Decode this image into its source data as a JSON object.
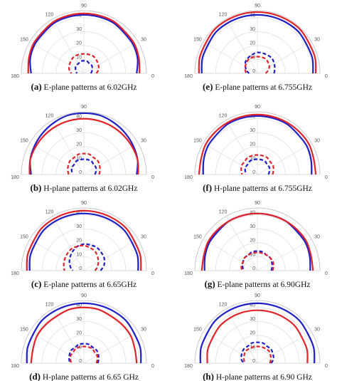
{
  "chart_data": [
    {
      "type": "polar",
      "label": "(a)",
      "caption": "E-plane patterns at 6.02GHz",
      "theta": [
        0,
        15,
        30,
        45,
        60,
        75,
        90,
        105,
        120,
        135,
        150,
        165,
        180
      ],
      "thetaticks": [
        0,
        30,
        90,
        120,
        150,
        180
      ],
      "rlim": [
        0,
        45
      ],
      "rticks": [
        10,
        20,
        30,
        40
      ],
      "series": [
        {
          "color": "#1f1fc8",
          "dash": false,
          "values": [
            38,
            40,
            41,
            41,
            42,
            42,
            42,
            42,
            42,
            41,
            41,
            40,
            38
          ]
        },
        {
          "color": "#e0242a",
          "dash": false,
          "values": [
            40,
            41,
            42,
            42,
            43,
            43,
            43,
            43,
            43,
            42,
            42,
            41,
            40
          ]
        },
        {
          "color": "#1f1fc8",
          "dash": true,
          "values": [
            5,
            6,
            7,
            8,
            8,
            9,
            9,
            9,
            8,
            8,
            7,
            6,
            5
          ]
        },
        {
          "color": "#e0242a",
          "dash": true,
          "values": [
            9,
            11,
            12,
            13,
            14,
            14,
            14,
            14,
            14,
            13,
            12,
            11,
            9
          ]
        }
      ]
    },
    {
      "type": "polar",
      "label": "(b)",
      "caption": "H-plane patterns at 6.02GHz",
      "theta": [
        0,
        15,
        30,
        45,
        60,
        75,
        90,
        105,
        120,
        135,
        150,
        165,
        180
      ],
      "thetaticks": [
        0,
        30,
        90,
        120,
        150,
        180
      ],
      "rlim": [
        0,
        45
      ],
      "rticks": [
        0,
        10,
        20,
        30,
        40
      ],
      "series": [
        {
          "color": "#1f1fc8",
          "dash": false,
          "values": [
            38,
            40,
            41,
            42,
            43,
            44,
            44,
            44,
            43,
            42,
            41,
            40,
            38
          ]
        },
        {
          "color": "#e0242a",
          "dash": false,
          "values": [
            39,
            40,
            40,
            40,
            40,
            40,
            40,
            40,
            40,
            40,
            40,
            40,
            39
          ]
        },
        {
          "color": "#1f1fc8",
          "dash": true,
          "values": [
            8,
            9,
            10,
            10,
            11,
            11,
            11,
            11,
            11,
            10,
            10,
            9,
            8
          ]
        },
        {
          "color": "#e0242a",
          "dash": true,
          "values": [
            11,
            12,
            13,
            14,
            14,
            15,
            15,
            15,
            14,
            14,
            13,
            12,
            11
          ]
        }
      ]
    },
    {
      "type": "polar",
      "label": "(c)",
      "caption": "E-plane patterns at 6.65GHz",
      "theta": [
        0,
        15,
        30,
        45,
        60,
        75,
        90,
        105,
        120,
        135,
        150,
        165,
        180
      ],
      "thetaticks": [
        0,
        30,
        90,
        120,
        150,
        180
      ],
      "rlim": [
        0,
        45
      ],
      "rticks": [
        0,
        10,
        20,
        30,
        40
      ],
      "series": [
        {
          "color": "#1f1fc8",
          "dash": false,
          "values": [
            39,
            40,
            40,
            41,
            41,
            41,
            41,
            41,
            41,
            41,
            40,
            40,
            39
          ]
        },
        {
          "color": "#e0242a",
          "dash": false,
          "values": [
            41,
            42,
            42,
            43,
            43,
            43,
            43,
            43,
            43,
            43,
            42,
            42,
            41
          ]
        },
        {
          "color": "#1f1fc8",
          "dash": true,
          "values": [
            12,
            15,
            17,
            18,
            19,
            19,
            19,
            18,
            16,
            14,
            12,
            10,
            8
          ]
        },
        {
          "color": "#e0242a",
          "dash": true,
          "values": [
            8,
            10,
            12,
            14,
            16,
            17,
            18,
            18,
            18,
            17,
            16,
            15,
            14
          ]
        }
      ]
    },
    {
      "type": "polar",
      "label": "(d)",
      "caption": "H-plane patterns at 6.65 GHz",
      "theta": [
        0,
        15,
        30,
        45,
        60,
        75,
        90,
        105,
        120,
        135,
        150,
        165,
        180
      ],
      "thetaticks": [
        0,
        30,
        90,
        120,
        150,
        180
      ],
      "rlim": [
        0,
        45
      ],
      "rticks": [
        0,
        10,
        20,
        30,
        40
      ],
      "series": [
        {
          "color": "#1f1fc8",
          "dash": false,
          "values": [
            41,
            42,
            42,
            43,
            43,
            43,
            43,
            43,
            43,
            43,
            42,
            42,
            41
          ]
        },
        {
          "color": "#e0242a",
          "dash": false,
          "values": [
            38,
            38,
            39,
            39,
            39,
            40,
            40,
            40,
            39,
            39,
            39,
            38,
            38
          ]
        },
        {
          "color": "#1f1fc8",
          "dash": true,
          "values": [
            10,
            11,
            12,
            13,
            13,
            14,
            14,
            14,
            13,
            13,
            12,
            11,
            10
          ]
        },
        {
          "color": "#e0242a",
          "dash": true,
          "values": [
            9,
            10,
            11,
            11,
            12,
            12,
            12,
            12,
            12,
            11,
            11,
            10,
            9
          ]
        }
      ]
    },
    {
      "type": "polar",
      "label": "(e)",
      "caption": "E-plane patterns at 6.755GHz",
      "theta": [
        0,
        15,
        30,
        45,
        60,
        75,
        90,
        105,
        120,
        135,
        150,
        165,
        180
      ],
      "thetaticks": [
        0,
        30,
        90,
        120,
        150,
        180
      ],
      "rlim": [
        0,
        45
      ],
      "rticks": [
        0,
        10,
        20,
        30,
        40
      ],
      "series": [
        {
          "color": "#1f1fc8",
          "dash": false,
          "values": [
            40,
            41,
            41,
            42,
            42,
            42,
            42,
            42,
            42,
            42,
            41,
            41,
            40
          ]
        },
        {
          "color": "#e0242a",
          "dash": false,
          "values": [
            42,
            43,
            43,
            44,
            44,
            44,
            44,
            44,
            44,
            44,
            43,
            43,
            42
          ]
        },
        {
          "color": "#1f1fc8",
          "dash": true,
          "values": [
            12,
            13,
            14,
            15,
            15,
            15,
            15,
            14,
            13,
            12,
            10,
            8,
            6
          ]
        },
        {
          "color": "#e0242a",
          "dash": true,
          "values": [
            6,
            8,
            10,
            11,
            12,
            12,
            12,
            12,
            12,
            11,
            10,
            9,
            8
          ]
        }
      ]
    },
    {
      "type": "polar",
      "label": "(f)",
      "caption": "H-plane patterns at 6.755GHz",
      "theta": [
        0,
        15,
        30,
        45,
        60,
        75,
        90,
        105,
        120,
        135,
        150,
        165,
        180
      ],
      "thetaticks": [
        0,
        30,
        90,
        120,
        150,
        180
      ],
      "rlim": [
        0,
        45
      ],
      "rticks": [
        0,
        10,
        20,
        30,
        40
      ],
      "series": [
        {
          "color": "#1f1fc8",
          "dash": false,
          "values": [
            39,
            40,
            41,
            41,
            42,
            42,
            42,
            42,
            42,
            41,
            41,
            40,
            39
          ]
        },
        {
          "color": "#e0242a",
          "dash": false,
          "values": [
            42,
            42,
            43,
            43,
            43,
            43,
            43,
            43,
            43,
            43,
            43,
            42,
            42
          ]
        },
        {
          "color": "#1f1fc8",
          "dash": true,
          "values": [
            8,
            9,
            10,
            10,
            11,
            11,
            11,
            11,
            11,
            10,
            10,
            9,
            8
          ]
        },
        {
          "color": "#e0242a",
          "dash": true,
          "values": [
            11,
            12,
            13,
            13,
            14,
            14,
            14,
            14,
            14,
            13,
            13,
            12,
            11
          ]
        }
      ]
    },
    {
      "type": "polar",
      "label": "(g)",
      "caption": "E-plane patterns at 6.90GHz",
      "theta": [
        0,
        15,
        30,
        45,
        60,
        75,
        90,
        105,
        120,
        135,
        150,
        165,
        180
      ],
      "thetaticks": [
        0,
        30,
        90,
        120,
        150,
        180
      ],
      "rlim": [
        0,
        45
      ],
      "rticks": [
        0,
        10,
        20,
        30,
        40
      ],
      "series": [
        {
          "color": "#1f1fc8",
          "dash": false,
          "values": [
            38,
            39,
            40,
            40,
            41,
            41,
            41,
            41,
            41,
            40,
            40,
            39,
            38
          ]
        },
        {
          "color": "#e0242a",
          "dash": false,
          "values": [
            40,
            40,
            41,
            41,
            41,
            41,
            41,
            41,
            41,
            41,
            41,
            40,
            40
          ]
        },
        {
          "color": "#1f1fc8",
          "dash": true,
          "values": [
            10,
            11,
            12,
            13,
            13,
            14,
            14,
            14,
            13,
            13,
            12,
            11,
            10
          ]
        },
        {
          "color": "#e0242a",
          "dash": true,
          "values": [
            11,
            12,
            13,
            13,
            13,
            13,
            13,
            13,
            13,
            13,
            12,
            12,
            11
          ]
        }
      ]
    },
    {
      "type": "polar",
      "label": "(h)",
      "caption": "H-plane patterns at 6.90 GHz",
      "theta": [
        0,
        15,
        30,
        45,
        60,
        75,
        90,
        105,
        120,
        135,
        150,
        165,
        180
      ],
      "thetaticks": [
        0,
        30,
        90,
        120,
        150,
        180
      ],
      "rlim": [
        0,
        45
      ],
      "rticks": [
        0,
        10,
        20,
        30,
        40
      ],
      "series": [
        {
          "color": "#1f1fc8",
          "dash": false,
          "values": [
            41,
            42,
            42,
            43,
            43,
            43,
            43,
            43,
            43,
            43,
            42,
            42,
            41
          ]
        },
        {
          "color": "#e0242a",
          "dash": false,
          "values": [
            36,
            37,
            37,
            38,
            38,
            38,
            38,
            38,
            38,
            38,
            37,
            37,
            36
          ]
        },
        {
          "color": "#1f1fc8",
          "dash": true,
          "values": [
            10,
            12,
            13,
            14,
            14,
            15,
            15,
            15,
            14,
            14,
            13,
            12,
            10
          ]
        },
        {
          "color": "#e0242a",
          "dash": true,
          "values": [
            9,
            10,
            11,
            12,
            12,
            12,
            12,
            12,
            12,
            12,
            11,
            10,
            9
          ]
        }
      ]
    }
  ]
}
